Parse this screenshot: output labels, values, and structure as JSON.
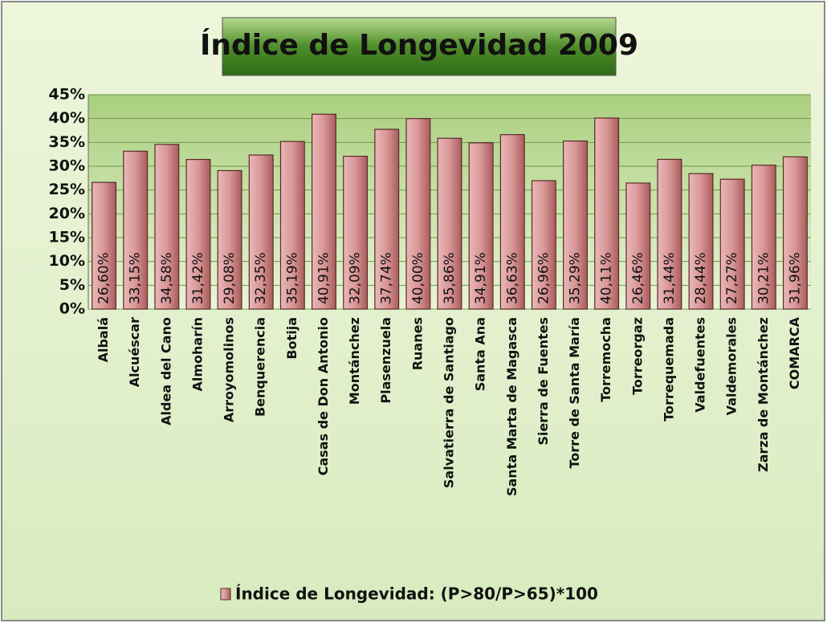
{
  "chart_data": {
    "type": "bar",
    "title": "Índice de Longevidad 2009",
    "categories": [
      "Albalá",
      "Alcuéscar",
      "Aldea del Cano",
      "Almoharín",
      "Arroyomolinos",
      "Benquerencia",
      "Botija",
      "Casas de Don Antonio",
      "Montánchez",
      "Plasenzuela",
      "Ruanes",
      "Salvatierra de Santiago",
      "Santa Ana",
      "Santa Marta de Magasca",
      "Sierra de Fuentes",
      "Torre de Santa María",
      "Torremocha",
      "Torreorgaz",
      "Torrequemada",
      "Valdefuentes",
      "Valdemorales",
      "Zarza de Montánchez",
      "COMARCA"
    ],
    "series": [
      {
        "name": "Índice de Longevidad: (P>80/P>65)*100",
        "color": "#c98080",
        "values": [
          26.6,
          33.15,
          34.58,
          31.42,
          29.08,
          32.35,
          35.19,
          40.91,
          32.09,
          37.74,
          40.0,
          35.86,
          34.91,
          36.63,
          26.96,
          35.29,
          40.11,
          26.46,
          31.44,
          28.44,
          27.27,
          30.21,
          31.96
        ],
        "value_labels": [
          "26,60%",
          "33,15%",
          "34,58%",
          "31,42%",
          "29,08%",
          "32,35%",
          "35,19%",
          "40,91%",
          "32,09%",
          "37,74%",
          "40,00%",
          "35,86%",
          "34,91%",
          "36,63%",
          "26,96%",
          "35,29%",
          "40,11%",
          "26,46%",
          "31,44%",
          "28,44%",
          "27,27%",
          "30,21%",
          "31,96%"
        ]
      }
    ],
    "ylim": [
      0,
      45
    ],
    "yticks": [
      {
        "value": 0,
        "label": "0%"
      },
      {
        "value": 5,
        "label": "5%"
      },
      {
        "value": 10,
        "label": "10%"
      },
      {
        "value": 15,
        "label": "15%"
      },
      {
        "value": 20,
        "label": "20%"
      },
      {
        "value": 25,
        "label": "25%"
      },
      {
        "value": 30,
        "label": "30%"
      },
      {
        "value": 35,
        "label": "35%"
      },
      {
        "value": 40,
        "label": "40%"
      },
      {
        "value": 45,
        "label": "45%"
      }
    ],
    "grid": true,
    "legend": "bottom"
  }
}
